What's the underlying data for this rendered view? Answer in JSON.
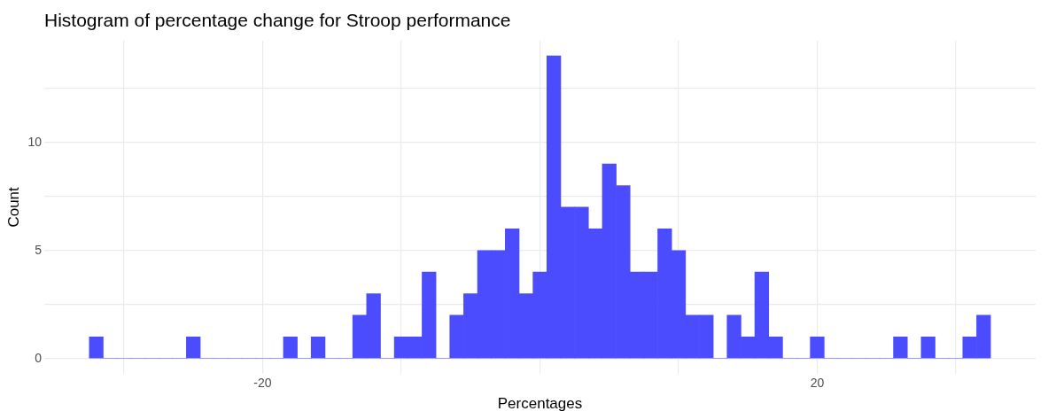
{
  "chart_data": {
    "type": "histogram",
    "title": "Histogram of percentage change for Stroop performance",
    "xlabel": "Percentages",
    "ylabel": "Count",
    "bins": [
      -32.5,
      -31.5,
      -30.5,
      -29.5,
      -28.5,
      -27.5,
      -26.5,
      -25.5,
      -24.5,
      -23.5,
      -22.5,
      -21.5,
      -20.5,
      -19.5,
      -18.5,
      -17.5,
      -16.5,
      -15.5,
      -14.5,
      -13.5,
      -12.5,
      -11.5,
      -10.5,
      -9.5,
      -8.5,
      -7.5,
      -6.5,
      -5.5,
      -4.5,
      -3.5,
      -2.5,
      -1.5,
      -0.5,
      0.5,
      1.5,
      2.5,
      3.5,
      4.5,
      5.5,
      6.5,
      7.5,
      8.5,
      9.5,
      10.5,
      11.5,
      12.5,
      13.5,
      14.5,
      15.5,
      16.5,
      17.5,
      18.5,
      19.5,
      20.5,
      21.5,
      22.5,
      23.5,
      24.5,
      25.5,
      26.5,
      27.5,
      28.5,
      29.5,
      30.5,
      31.5,
      32.5
    ],
    "values": [
      1,
      0,
      0,
      0,
      0,
      0,
      0,
      1,
      0,
      0,
      0,
      0,
      0,
      0,
      1,
      0,
      1,
      0,
      0,
      2,
      3,
      0,
      1,
      1,
      4,
      0,
      2,
      3,
      5,
      5,
      6,
      3,
      4,
      14,
      7,
      7,
      6,
      9,
      8,
      4,
      4,
      6,
      5,
      2,
      2,
      0,
      2,
      1,
      4,
      1,
      0,
      0,
      1,
      0,
      0,
      0,
      0,
      0,
      1,
      0,
      1,
      0,
      0,
      1,
      2
    ],
    "color": "#4c4cff",
    "xlim": [
      -35.75,
      35.75
    ],
    "xticks": [
      {
        "value": -30,
        "label": null
      },
      -20,
      {
        "value": -10,
        "label": null
      },
      {
        "value": 0,
        "label": null
      },
      {
        "value": 10,
        "label": null
      },
      20,
      {
        "value": 30,
        "label": null
      }
    ],
    "ylim": [
      -0.7,
      14.7
    ],
    "yticks": [
      0,
      {
        "value": 2.5,
        "label": null
      },
      5,
      {
        "value": 7.5,
        "label": null
      },
      10,
      {
        "value": 12.5,
        "label": null
      }
    ],
    "grid": true,
    "legend": false
  }
}
